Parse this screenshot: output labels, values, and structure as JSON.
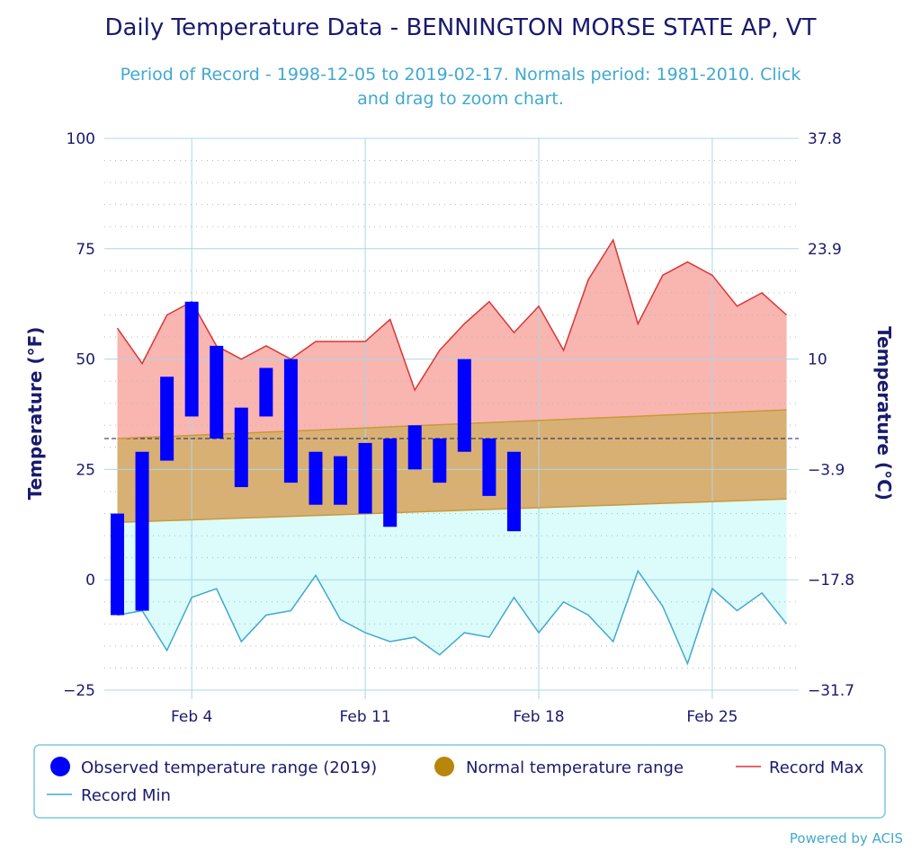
{
  "chart_data": {
    "type": "range-bar-area",
    "title": "Daily Temperature Data - BENNINGTON MORSE STATE AP, VT",
    "subtitle_line1": "Period of Record - 1998-12-05 to 2019-02-17. Normals period: 1981-2010. Click",
    "subtitle_line2": "and drag to zoom chart.",
    "ylabel_left": "Temperature (°F)",
    "ylabel_right": "Temperature (°C)",
    "ylim": [
      -25,
      100
    ],
    "y_ticks": [
      100,
      75,
      50,
      25,
      0,
      -25
    ],
    "y_ticks_celsius": [
      "37.8",
      "23.9",
      "10",
      "-3.9",
      "-17.8",
      "-31.7"
    ],
    "x_days": [
      1,
      28
    ],
    "x_ticks": [
      {
        "day": 4,
        "label": "Feb 4"
      },
      {
        "day": 11,
        "label": "Feb 11"
      },
      {
        "day": 18,
        "label": "Feb 18"
      },
      {
        "day": 25,
        "label": "Feb 25"
      }
    ],
    "reference_line_f": 32,
    "record_max": [
      57,
      49,
      60,
      63,
      53,
      50,
      53,
      50,
      54,
      54,
      54,
      59,
      43,
      52,
      58,
      63,
      56,
      62,
      52,
      68,
      77,
      58,
      69,
      72,
      69,
      62,
      65,
      60
    ],
    "record_min": [
      -8,
      -7,
      -16,
      -4,
      -2,
      -14,
      -8,
      -7,
      1,
      -9,
      -12,
      -14,
      -13,
      -17,
      -12,
      -13,
      -4,
      -12,
      -5,
      -8,
      -14,
      2,
      -6,
      -19,
      -2,
      -7,
      -3,
      -10
    ],
    "normal_max_start": 32,
    "normal_max_end": 38.5,
    "normal_min_start": 13,
    "normal_min_end": 18.3,
    "observed": [
      {
        "day": 1,
        "low": -8,
        "high": 15
      },
      {
        "day": 2,
        "low": -7,
        "high": 29
      },
      {
        "day": 3,
        "low": 27,
        "high": 46
      },
      {
        "day": 4,
        "low": 37,
        "high": 63
      },
      {
        "day": 5,
        "low": 32,
        "high": 53
      },
      {
        "day": 6,
        "low": 21,
        "high": 39
      },
      {
        "day": 7,
        "low": 37,
        "high": 48
      },
      {
        "day": 8,
        "low": 22,
        "high": 50
      },
      {
        "day": 9,
        "low": 17,
        "high": 29
      },
      {
        "day": 10,
        "low": 17,
        "high": 28
      },
      {
        "day": 11,
        "low": 15,
        "high": 31
      },
      {
        "day": 12,
        "low": 12,
        "high": 32
      },
      {
        "day": 13,
        "low": 25,
        "high": 35
      },
      {
        "day": 14,
        "low": 22,
        "high": 32
      },
      {
        "day": 15,
        "low": 29,
        "high": 50
      },
      {
        "day": 16,
        "low": 19,
        "high": 32
      },
      {
        "day": 17,
        "low": 11,
        "high": 29
      }
    ],
    "legend": {
      "observed": "Observed temperature range (2019)",
      "normal": "Normal temperature range",
      "record_max": "Record Max",
      "record_min": "Record Min"
    },
    "colors": {
      "observed": "#0000ff",
      "normal_fill": "#d8b074",
      "normal_line": "#c89a3a",
      "normal_legend": "#b8860b",
      "record_max_line": "#dc3434",
      "record_max_fill": "#f9b5b0",
      "record_min_line": "#3fa9cf",
      "record_min_fill": "#dcfbfb",
      "grid": "#a8d8e8",
      "text": "#1a1a6e"
    }
  },
  "credit": "Powered by ACIS"
}
